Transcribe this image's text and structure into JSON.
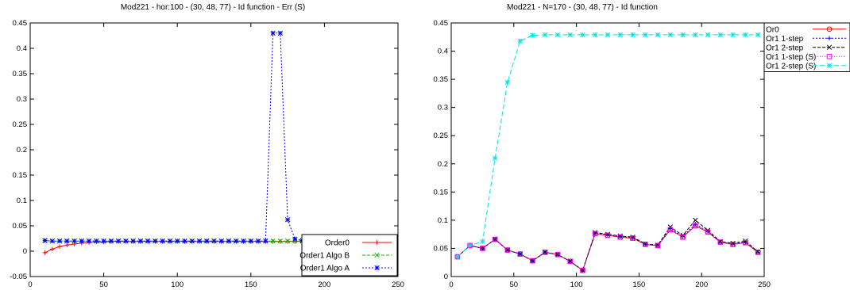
{
  "chart_data": [
    {
      "type": "line",
      "title": "Mod221 - hor:100 - (30,  48,  77) - Id function - Err (S)",
      "xlim": [
        0,
        250
      ],
      "ylim": [
        -0.05,
        0.45
      ],
      "xticks": [
        "0",
        "50",
        "100",
        "150",
        "200",
        "250"
      ],
      "yticks": [
        "-0.05",
        "0",
        "0.05",
        "0.1",
        "0.15",
        "0.2",
        "0.25",
        "0.3",
        "0.35",
        "0.4",
        "0.45"
      ],
      "grid": false,
      "legend_position": "bottom-right",
      "series": [
        {
          "name": "Order0",
          "color": "#ff0000",
          "marker": "plus",
          "dash": "",
          "x": [
            10,
            15,
            20,
            25,
            30,
            35,
            40,
            45,
            50,
            55,
            60,
            65,
            70,
            75,
            80,
            85,
            90,
            95,
            100,
            105,
            110,
            115,
            120,
            125,
            130,
            135,
            140,
            145,
            150,
            155,
            160,
            165,
            170,
            175,
            180,
            185,
            190,
            195,
            200,
            205,
            210
          ],
          "y": [
            -0.003,
            0.004,
            0.009,
            0.012,
            0.014,
            0.016,
            0.017,
            0.018,
            0.018,
            0.019,
            0.019,
            0.019,
            0.019,
            0.019,
            0.019,
            0.019,
            0.019,
            0.019,
            0.019,
            0.019,
            0.019,
            0.019,
            0.019,
            0.019,
            0.019,
            0.019,
            0.019,
            0.019,
            0.019,
            0.019,
            0.019,
            0.019,
            0.019,
            0.019,
            0.019,
            0.019,
            0.019,
            0.019,
            0.019,
            0.019,
            0.019
          ]
        },
        {
          "name": "Order1 Algo B",
          "color": "#00c000",
          "marker": "x",
          "dash": "4,2",
          "x": [
            10,
            15,
            20,
            25,
            30,
            35,
            40,
            45,
            50,
            55,
            60,
            65,
            70,
            75,
            80,
            85,
            90,
            95,
            100,
            105,
            110,
            115,
            120,
            125,
            130,
            135,
            140,
            145,
            150,
            155,
            160,
            165,
            170,
            175,
            180,
            185,
            190,
            195,
            200,
            205,
            210
          ],
          "y": [
            0.021,
            0.02,
            0.02,
            0.02,
            0.02,
            0.02,
            0.02,
            0.02,
            0.02,
            0.02,
            0.02,
            0.02,
            0.02,
            0.02,
            0.02,
            0.02,
            0.02,
            0.02,
            0.02,
            0.02,
            0.02,
            0.02,
            0.02,
            0.02,
            0.02,
            0.02,
            0.02,
            0.02,
            0.02,
            0.02,
            0.02,
            0.02,
            0.02,
            0.02,
            0.02,
            0.02,
            0.02,
            0.02,
            0.02,
            0.02,
            0.02
          ]
        },
        {
          "name": "Order1 Algo A",
          "color": "#0000ff",
          "marker": "star",
          "dash": "2,2",
          "x": [
            10,
            15,
            20,
            25,
            30,
            35,
            40,
            45,
            50,
            55,
            60,
            65,
            70,
            75,
            80,
            85,
            90,
            95,
            100,
            105,
            110,
            115,
            120,
            125,
            130,
            135,
            140,
            145,
            150,
            155,
            160,
            165,
            170,
            175,
            180,
            185,
            190,
            195,
            200,
            205,
            210
          ],
          "y": [
            0.021,
            0.02,
            0.02,
            0.02,
            0.02,
            0.02,
            0.02,
            0.02,
            0.02,
            0.02,
            0.02,
            0.02,
            0.02,
            0.02,
            0.02,
            0.02,
            0.02,
            0.02,
            0.02,
            0.02,
            0.02,
            0.02,
            0.02,
            0.02,
            0.02,
            0.02,
            0.02,
            0.02,
            0.02,
            0.02,
            0.02,
            0.43,
            0.43,
            0.062,
            0.024,
            0.021,
            0.02,
            0.02,
            0.02,
            0.02,
            0.02
          ]
        }
      ]
    },
    {
      "type": "line",
      "title": "Mod221 - N=170 - (30,  48,  77) - Id function",
      "xlim": [
        0,
        250
      ],
      "ylim": [
        0,
        0.45
      ],
      "xticks": [
        "0",
        "50",
        "100",
        "150",
        "200",
        "250"
      ],
      "yticks": [
        "0",
        "0.05",
        "0.1",
        "0.15",
        "0.2",
        "0.25",
        "0.3",
        "0.35",
        "0.4",
        "0.45"
      ],
      "grid": false,
      "legend_position": "outside top-right",
      "series": [
        {
          "name": "Or0",
          "color": "#ff0000",
          "marker": "circle",
          "dash": "",
          "x": [
            5,
            15,
            25,
            35,
            45,
            55,
            65,
            75,
            85,
            95,
            105,
            115,
            125,
            135,
            145,
            155,
            165,
            175,
            185,
            195,
            205,
            215,
            225,
            235,
            245
          ],
          "y": [
            0.035,
            0.055,
            0.05,
            0.066,
            0.047,
            0.04,
            0.028,
            0.043,
            0.039,
            0.027,
            0.011,
            0.076,
            0.073,
            0.07,
            0.068,
            0.057,
            0.055,
            0.083,
            0.07,
            0.09,
            0.079,
            0.061,
            0.057,
            0.06,
            0.043
          ]
        },
        {
          "name": "Or1 1-step",
          "color": "#0000ff",
          "marker": "plus",
          "dash": "2,2",
          "x": [
            5,
            15,
            25,
            35,
            45,
            55,
            65,
            75,
            85,
            95,
            105,
            115,
            125,
            135,
            145,
            155,
            165,
            175,
            185,
            195,
            205,
            215,
            225,
            235,
            245
          ],
          "y": [
            0.035,
            0.055,
            0.05,
            0.066,
            0.047,
            0.04,
            0.028,
            0.043,
            0.039,
            0.027,
            0.011,
            0.077,
            0.074,
            0.071,
            0.069,
            0.057,
            0.055,
            0.085,
            0.071,
            0.093,
            0.08,
            0.061,
            0.058,
            0.061,
            0.043
          ]
        },
        {
          "name": "Or1 2-step",
          "color": "#000000",
          "marker": "x",
          "dash": "4,2",
          "x": [
            5,
            15,
            25,
            35,
            45,
            55,
            65,
            75,
            85,
            95,
            105,
            115,
            125,
            135,
            145,
            155,
            165,
            175,
            185,
            195,
            205,
            215,
            225,
            235,
            245
          ],
          "y": [
            0.035,
            0.055,
            0.05,
            0.066,
            0.047,
            0.04,
            0.028,
            0.043,
            0.039,
            0.027,
            0.011,
            0.078,
            0.075,
            0.072,
            0.07,
            0.058,
            0.056,
            0.088,
            0.073,
            0.1,
            0.082,
            0.062,
            0.059,
            0.063,
            0.044
          ]
        },
        {
          "name": "Or1 1-step (S)",
          "color": "#ff00ff",
          "marker": "square",
          "dash": "1,2",
          "x": [
            5,
            15,
            25,
            35,
            45,
            55,
            65,
            75,
            85,
            95,
            105,
            115,
            125,
            135,
            145,
            155,
            165,
            175,
            185,
            195,
            205,
            215,
            225,
            235,
            245
          ],
          "y": [
            0.035,
            0.055,
            0.05,
            0.066,
            0.047,
            0.04,
            0.028,
            0.043,
            0.039,
            0.027,
            0.011,
            0.076,
            0.073,
            0.07,
            0.068,
            0.057,
            0.055,
            0.083,
            0.07,
            0.09,
            0.079,
            0.061,
            0.057,
            0.06,
            0.043
          ]
        },
        {
          "name": "Or1 2-step (S)",
          "color": "#00e5e5",
          "marker": "star",
          "dash": "6,3",
          "x": [
            5,
            15,
            25,
            35,
            45,
            55,
            65,
            75,
            85,
            95,
            105,
            115,
            125,
            135,
            145,
            155,
            165,
            175,
            185,
            195,
            205,
            215,
            225,
            235,
            245
          ],
          "y": [
            0.035,
            0.055,
            0.062,
            0.21,
            0.345,
            0.418,
            0.428,
            0.429,
            0.429,
            0.429,
            0.429,
            0.429,
            0.429,
            0.429,
            0.429,
            0.429,
            0.429,
            0.429,
            0.429,
            0.429,
            0.429,
            0.429,
            0.429,
            0.429,
            0.429
          ]
        }
      ]
    }
  ]
}
